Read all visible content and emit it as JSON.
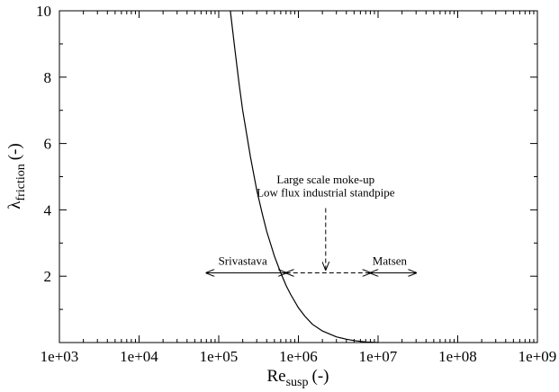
{
  "chart_data": {
    "type": "line",
    "xscale": "log",
    "xlim": [
      1000,
      1000000000
    ],
    "ylim": [
      0,
      10
    ],
    "xticks": [
      "1e+03",
      "1e+04",
      "1e+05",
      "1e+06",
      "1e+07",
      "1e+08",
      "1e+09"
    ],
    "yticks": [
      "2",
      "4",
      "6",
      "8",
      "10"
    ],
    "xlabel": {
      "main": "Re",
      "sub": "susp",
      "unit": "(-)"
    },
    "ylabel": {
      "main": "λ",
      "sub": "friction",
      "unit": "(-)"
    },
    "grid": false,
    "series": [
      {
        "color": "#000000",
        "x": [
          140000,
          160000,
          180000,
          200000,
          250000,
          300000,
          350000,
          400000,
          500000,
          600000,
          700000,
          800000,
          1000000,
          1200000,
          1500000,
          2000000,
          3000000,
          4000000,
          5000000,
          7000000,
          10000000
        ],
        "y": [
          10.0,
          8.8,
          7.8,
          7.0,
          5.6,
          4.6,
          3.9,
          3.35,
          2.6,
          2.1,
          1.72,
          1.45,
          1.05,
          0.8,
          0.55,
          0.35,
          0.17,
          0.1,
          0.06,
          0.02,
          0.0
        ]
      }
    ],
    "annotations": [
      {
        "text": "Srivastava",
        "x_from": 70000,
        "x_to": 700000,
        "y": 2.1,
        "label_x": 200000,
        "label_y": 2.35,
        "style": "solid-double-arrow"
      },
      {
        "text": "",
        "x_from": 700000,
        "x_to": 8000000,
        "y": 2.1,
        "style": "dashed-double-arrow"
      },
      {
        "text": "Matsen",
        "x_from": 8000000,
        "x_to": 30000000,
        "y": 2.1,
        "label_x": 14000000,
        "label_y": 2.35,
        "style": "solid-double-arrow"
      },
      {
        "text": "Large scale moke-up",
        "label_x": 2200000,
        "label_y": 4.8
      },
      {
        "text": "Low flux industrial standpipe",
        "label_x": 2200000,
        "label_y": 4.4
      },
      {
        "text": "",
        "x": 2200000,
        "y_from": 4.05,
        "y_to": 2.2,
        "style": "dashed-down-arrow"
      }
    ]
  }
}
